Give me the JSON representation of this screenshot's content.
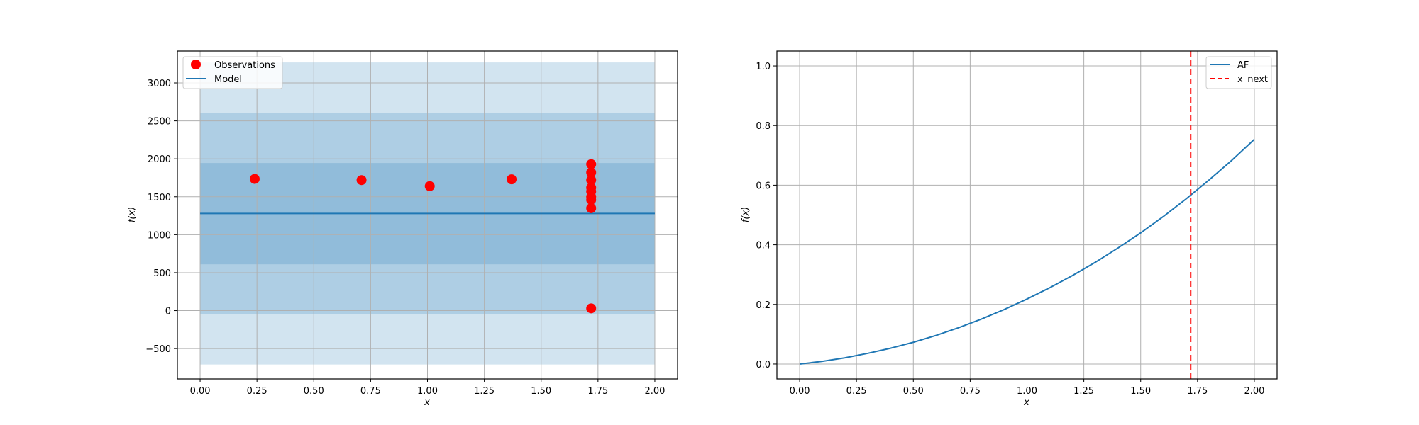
{
  "chart_data": [
    {
      "type": "scatter",
      "title": "",
      "xlabel": "x",
      "ylabel": "f(x)",
      "xlim": [
        -0.1,
        2.1
      ],
      "ylim": [
        -900,
        3420
      ],
      "xticks": [
        0.0,
        0.25,
        0.5,
        0.75,
        1.0,
        1.25,
        1.5,
        1.75,
        2.0
      ],
      "xtick_labels": [
        "0.00",
        "0.25",
        "0.50",
        "0.75",
        "1.00",
        "1.25",
        "1.50",
        "1.75",
        "2.00"
      ],
      "yticks": [
        -500,
        0,
        500,
        1000,
        1500,
        2000,
        2500,
        3000
      ],
      "ytick_labels": [
        "−500",
        "0",
        "500",
        "1000",
        "1500",
        "2000",
        "2500",
        "3000"
      ],
      "grid": true,
      "legend_position": "top-left",
      "legend": [
        "Observations",
        "Model"
      ],
      "observations": {
        "name": "Observations",
        "color": "#ff0000",
        "x": [
          0.24,
          0.71,
          1.01,
          1.37,
          1.72,
          1.72,
          1.72,
          1.72,
          1.72,
          1.72,
          1.72,
          1.72,
          1.72
        ],
        "y": [
          1735,
          1720,
          1640,
          1730,
          1930,
          1820,
          1720,
          1620,
          1570,
          1500,
          1460,
          1350,
          30
        ]
      },
      "model": {
        "name": "Model",
        "color": "#1f77b4",
        "x": [
          0.0,
          2.0
        ],
        "mean": 1280,
        "bands": [
          {
            "lower": -710,
            "upper": 3270
          },
          {
            "lower": -45,
            "upper": 2605
          },
          {
            "lower": 610,
            "upper": 1945
          }
        ]
      }
    },
    {
      "type": "line",
      "title": "",
      "xlabel": "x",
      "ylabel": "f(x)",
      "xlim": [
        -0.1,
        2.1
      ],
      "ylim": [
        -0.05,
        1.05
      ],
      "xticks": [
        0.0,
        0.25,
        0.5,
        0.75,
        1.0,
        1.25,
        1.5,
        1.75,
        2.0
      ],
      "xtick_labels": [
        "0.00",
        "0.25",
        "0.50",
        "0.75",
        "1.00",
        "1.25",
        "1.50",
        "1.75",
        "2.00"
      ],
      "yticks": [
        0.0,
        0.2,
        0.4,
        0.6,
        0.8,
        1.0
      ],
      "ytick_labels": [
        "0.0",
        "0.2",
        "0.4",
        "0.6",
        "0.8",
        "1.0"
      ],
      "grid": true,
      "legend_position": "top-right",
      "legend": [
        "AF",
        "x_next"
      ],
      "series": [
        {
          "name": "AF",
          "color": "#1f77b4",
          "x": [
            0.0,
            0.1,
            0.2,
            0.3,
            0.4,
            0.5,
            0.6,
            0.7,
            0.8,
            0.9,
            1.0,
            1.1,
            1.2,
            1.3,
            1.4,
            1.5,
            1.6,
            1.7,
            1.8,
            1.9,
            2.0
          ],
          "y": [
            0.0,
            0.009,
            0.021,
            0.036,
            0.053,
            0.073,
            0.096,
            0.122,
            0.151,
            0.183,
            0.218,
            0.256,
            0.297,
            0.341,
            0.389,
            0.44,
            0.495,
            0.554,
            0.617,
            0.683,
            0.754
          ]
        }
      ],
      "vline": {
        "name": "x_next",
        "x": 1.72,
        "color": "#ff0000",
        "style": "dashed"
      }
    }
  ]
}
